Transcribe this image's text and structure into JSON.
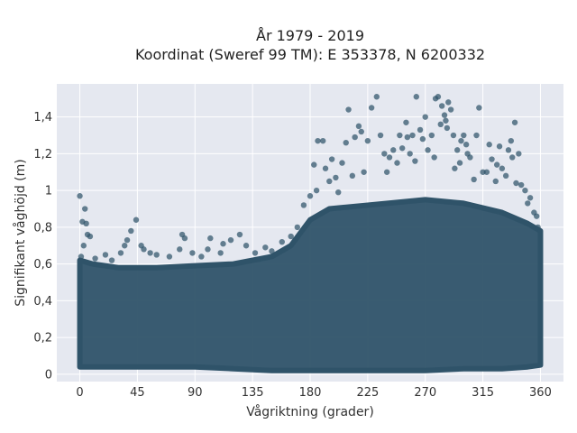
{
  "chart_data": {
    "type": "scatter",
    "title_line1": "År 1979 - 2019",
    "title_line2": "Koordinat (Sweref 99 TM): E 353378, N 6200332",
    "xlabel": "Vågriktning (grader)",
    "ylabel": "Signifikant våghöjd (m)",
    "xlim": [
      -18,
      378
    ],
    "ylim": [
      -0.04,
      1.58
    ],
    "x_ticks": [
      0,
      45,
      90,
      135,
      180,
      225,
      270,
      315,
      360
    ],
    "x_tick_labels": [
      "0",
      "45",
      "90",
      "135",
      "180",
      "225",
      "270",
      "315",
      "360"
    ],
    "y_ticks": [
      0,
      0.2,
      0.4,
      0.6,
      0.8,
      1.0,
      1.2,
      1.4
    ],
    "y_tick_labels": [
      "0",
      "0,2",
      "0,4",
      "0,6",
      "0,8",
      "1",
      "1,2",
      "1,4"
    ],
    "grid": true,
    "legend": "none",
    "colors": {
      "marker": "#2f5369",
      "plot_bg": "#e5e8f0",
      "grid": "#ffffff"
    },
    "envelope": [
      {
        "x": 0,
        "min": 0.04,
        "max": 0.62
      },
      {
        "x": 10,
        "min": 0.04,
        "max": 0.6
      },
      {
        "x": 30,
        "min": 0.04,
        "max": 0.58
      },
      {
        "x": 60,
        "min": 0.04,
        "max": 0.58
      },
      {
        "x": 90,
        "min": 0.04,
        "max": 0.59
      },
      {
        "x": 120,
        "min": 0.03,
        "max": 0.6
      },
      {
        "x": 150,
        "min": 0.02,
        "max": 0.64
      },
      {
        "x": 165,
        "min": 0.02,
        "max": 0.7
      },
      {
        "x": 180,
        "min": 0.02,
        "max": 0.84
      },
      {
        "x": 195,
        "min": 0.02,
        "max": 0.9
      },
      {
        "x": 225,
        "min": 0.02,
        "max": 0.92
      },
      {
        "x": 270,
        "min": 0.02,
        "max": 0.95
      },
      {
        "x": 300,
        "min": 0.03,
        "max": 0.93
      },
      {
        "x": 330,
        "min": 0.03,
        "max": 0.88
      },
      {
        "x": 350,
        "min": 0.04,
        "max": 0.82
      },
      {
        "x": 360,
        "min": 0.05,
        "max": 0.78
      }
    ],
    "points": [
      {
        "x": 0,
        "y": 0.97
      },
      {
        "x": 2,
        "y": 0.83
      },
      {
        "x": 4,
        "y": 0.9
      },
      {
        "x": 5,
        "y": 0.82
      },
      {
        "x": 6,
        "y": 0.76
      },
      {
        "x": 8,
        "y": 0.75
      },
      {
        "x": 3,
        "y": 0.7
      },
      {
        "x": 1,
        "y": 0.64
      },
      {
        "x": 12,
        "y": 0.63
      },
      {
        "x": 20,
        "y": 0.65
      },
      {
        "x": 25,
        "y": 0.62
      },
      {
        "x": 32,
        "y": 0.66
      },
      {
        "x": 35,
        "y": 0.7
      },
      {
        "x": 37,
        "y": 0.73
      },
      {
        "x": 40,
        "y": 0.78
      },
      {
        "x": 44,
        "y": 0.84
      },
      {
        "x": 48,
        "y": 0.7
      },
      {
        "x": 50,
        "y": 0.68
      },
      {
        "x": 55,
        "y": 0.66
      },
      {
        "x": 60,
        "y": 0.65
      },
      {
        "x": 70,
        "y": 0.64
      },
      {
        "x": 78,
        "y": 0.68
      },
      {
        "x": 80,
        "y": 0.76
      },
      {
        "x": 82,
        "y": 0.74
      },
      {
        "x": 88,
        "y": 0.66
      },
      {
        "x": 95,
        "y": 0.64
      },
      {
        "x": 100,
        "y": 0.68
      },
      {
        "x": 102,
        "y": 0.74
      },
      {
        "x": 110,
        "y": 0.66
      },
      {
        "x": 112,
        "y": 0.71
      },
      {
        "x": 118,
        "y": 0.73
      },
      {
        "x": 125,
        "y": 0.76
      },
      {
        "x": 130,
        "y": 0.7
      },
      {
        "x": 137,
        "y": 0.66
      },
      {
        "x": 145,
        "y": 0.69
      },
      {
        "x": 150,
        "y": 0.67
      },
      {
        "x": 158,
        "y": 0.72
      },
      {
        "x": 165,
        "y": 0.75
      },
      {
        "x": 170,
        "y": 0.8
      },
      {
        "x": 175,
        "y": 0.92
      },
      {
        "x": 180,
        "y": 0.97
      },
      {
        "x": 185,
        "y": 1.0
      },
      {
        "x": 186,
        "y": 1.27
      },
      {
        "x": 190,
        "y": 1.27
      },
      {
        "x": 192,
        "y": 1.12
      },
      {
        "x": 195,
        "y": 1.05
      },
      {
        "x": 200,
        "y": 1.07
      },
      {
        "x": 205,
        "y": 1.15
      },
      {
        "x": 208,
        "y": 1.26
      },
      {
        "x": 210,
        "y": 1.44
      },
      {
        "x": 215,
        "y": 1.29
      },
      {
        "x": 218,
        "y": 1.35
      },
      {
        "x": 220,
        "y": 1.32
      },
      {
        "x": 225,
        "y": 1.27
      },
      {
        "x": 228,
        "y": 1.45
      },
      {
        "x": 232,
        "y": 1.51
      },
      {
        "x": 235,
        "y": 1.3
      },
      {
        "x": 238,
        "y": 1.2
      },
      {
        "x": 240,
        "y": 1.1
      },
      {
        "x": 245,
        "y": 1.22
      },
      {
        "x": 250,
        "y": 1.3
      },
      {
        "x": 255,
        "y": 1.37
      },
      {
        "x": 258,
        "y": 1.2
      },
      {
        "x": 260,
        "y": 1.3
      },
      {
        "x": 263,
        "y": 1.51
      },
      {
        "x": 266,
        "y": 1.33
      },
      {
        "x": 268,
        "y": 1.28
      },
      {
        "x": 272,
        "y": 1.22
      },
      {
        "x": 275,
        "y": 1.3
      },
      {
        "x": 278,
        "y": 1.5
      },
      {
        "x": 280,
        "y": 1.51
      },
      {
        "x": 283,
        "y": 1.46
      },
      {
        "x": 285,
        "y": 1.41
      },
      {
        "x": 286,
        "y": 1.38
      },
      {
        "x": 288,
        "y": 1.48
      },
      {
        "x": 290,
        "y": 1.44
      },
      {
        "x": 292,
        "y": 1.3
      },
      {
        "x": 295,
        "y": 1.22
      },
      {
        "x": 298,
        "y": 1.27
      },
      {
        "x": 300,
        "y": 1.3
      },
      {
        "x": 303,
        "y": 1.2
      },
      {
        "x": 305,
        "y": 1.18
      },
      {
        "x": 310,
        "y": 1.3
      },
      {
        "x": 312,
        "y": 1.45
      },
      {
        "x": 315,
        "y": 1.1
      },
      {
        "x": 320,
        "y": 1.25
      },
      {
        "x": 322,
        "y": 1.17
      },
      {
        "x": 325,
        "y": 1.05
      },
      {
        "x": 328,
        "y": 1.24
      },
      {
        "x": 330,
        "y": 1.12
      },
      {
        "x": 335,
        "y": 1.22
      },
      {
        "x": 338,
        "y": 1.18
      },
      {
        "x": 340,
        "y": 1.37
      },
      {
        "x": 343,
        "y": 1.2
      },
      {
        "x": 345,
        "y": 1.03
      },
      {
        "x": 348,
        "y": 1.0
      },
      {
        "x": 350,
        "y": 0.93
      },
      {
        "x": 352,
        "y": 0.96
      },
      {
        "x": 355,
        "y": 0.88
      },
      {
        "x": 357,
        "y": 0.86
      },
      {
        "x": 358,
        "y": 0.8
      },
      {
        "x": 183,
        "y": 1.14
      },
      {
        "x": 197,
        "y": 1.17
      },
      {
        "x": 202,
        "y": 0.99
      },
      {
        "x": 213,
        "y": 1.08
      },
      {
        "x": 222,
        "y": 1.1
      },
      {
        "x": 242,
        "y": 1.18
      },
      {
        "x": 248,
        "y": 1.15
      },
      {
        "x": 252,
        "y": 1.23
      },
      {
        "x": 256,
        "y": 1.29
      },
      {
        "x": 262,
        "y": 1.16
      },
      {
        "x": 270,
        "y": 1.4
      },
      {
        "x": 277,
        "y": 1.18
      },
      {
        "x": 282,
        "y": 1.36
      },
      {
        "x": 287,
        "y": 1.34
      },
      {
        "x": 293,
        "y": 1.12
      },
      {
        "x": 297,
        "y": 1.15
      },
      {
        "x": 302,
        "y": 1.25
      },
      {
        "x": 308,
        "y": 1.06
      },
      {
        "x": 318,
        "y": 1.1
      },
      {
        "x": 326,
        "y": 1.14
      },
      {
        "x": 333,
        "y": 1.08
      },
      {
        "x": 337,
        "y": 1.27
      },
      {
        "x": 341,
        "y": 1.04
      }
    ]
  }
}
